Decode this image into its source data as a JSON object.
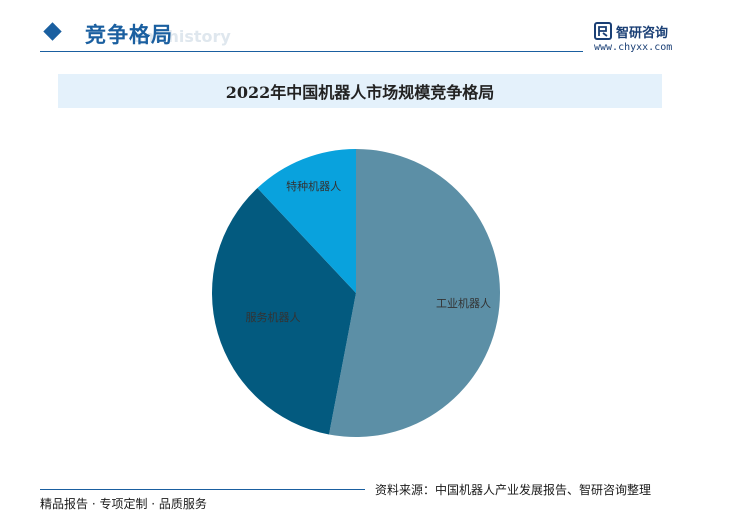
{
  "header": {
    "section_title": "竞争格局",
    "ghost_text": "ent history",
    "brand_name": "智研咨询",
    "brand_url": "www.chyxx.com"
  },
  "chart_data": {
    "type": "pie",
    "title": "2022年中国机器人市场规模竞争格局",
    "categories": [
      "工业机器人",
      "服务机器人",
      "特种机器人"
    ],
    "values": [
      53,
      35,
      12
    ],
    "colors": [
      "#5c8fa6",
      "#035a7f",
      "#09a2dd"
    ],
    "label_color": "#333333",
    "legend": "none"
  },
  "footer": {
    "source": "资料来源：中国机器人产业发展报告、智研咨询整理",
    "slogan": "精品报告 · 专项定制 · 品质服务"
  },
  "theme": {
    "accent": "#1a5fa0",
    "title_bar_bg": "#e4f1fb"
  }
}
